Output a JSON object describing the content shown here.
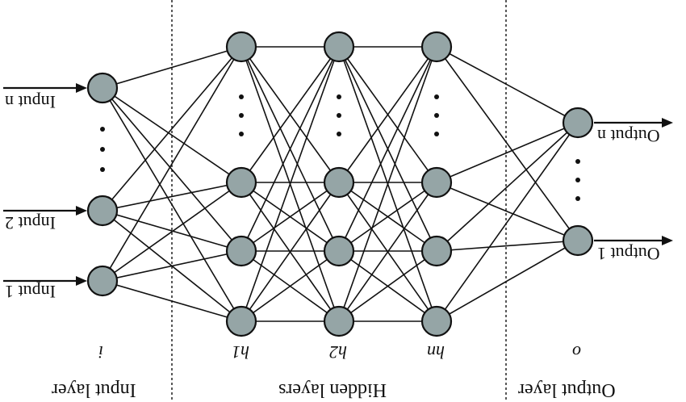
{
  "diagram": {
    "inputs": [
      "Input n",
      "Input 2",
      "Input 1"
    ],
    "outputs": [
      "Output n",
      "Output 1"
    ],
    "layer_labels": {
      "input": "Input layer",
      "hidden": "Hidden layers",
      "output": "Output layer"
    },
    "node_symbols": {
      "input": "i",
      "hidden_1": "h1",
      "hidden_2": "h2",
      "hidden_3": "hn",
      "output": "o"
    },
    "colors": {
      "node_fill": "#95a5a6",
      "line": "#111111"
    }
  }
}
